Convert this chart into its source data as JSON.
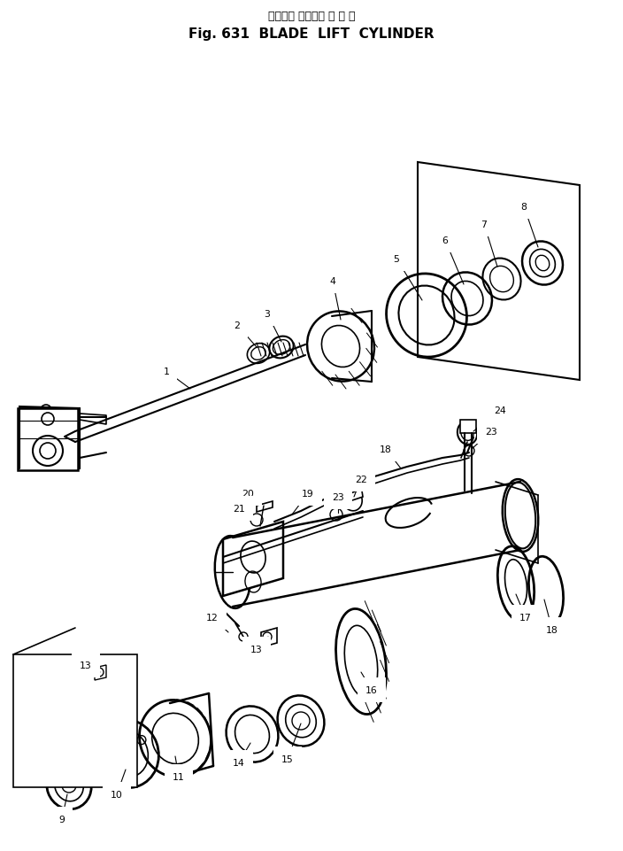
{
  "title_japanese": "ブレード リフトシ リ ン ダ",
  "title_english": "Fig. 631  BLADE  LIFT  CYLINDER",
  "bg": "#ffffff",
  "lc": "#000000",
  "fig_width": 7.04,
  "fig_height": 9.62,
  "dpi": 100
}
